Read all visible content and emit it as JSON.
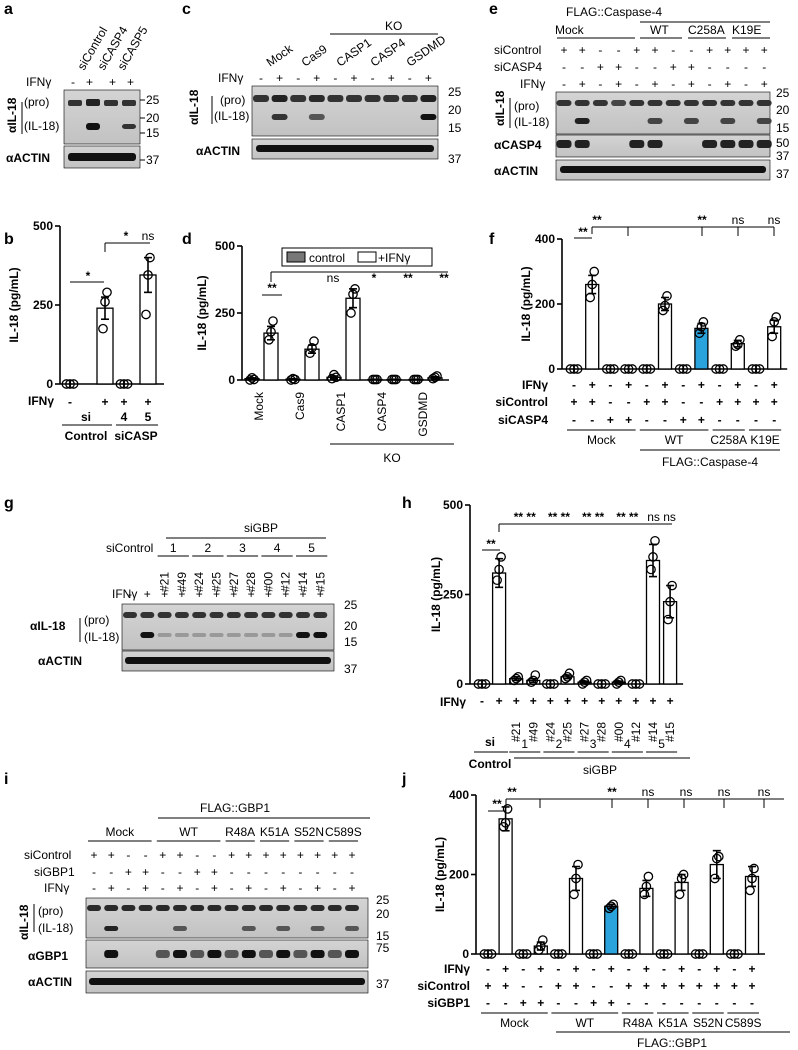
{
  "panels": {
    "a": "a",
    "b": "b",
    "c": "c",
    "d": "d",
    "e": "e",
    "f": "f",
    "g": "g",
    "h": "h",
    "i": "i",
    "j": "j"
  },
  "common": {
    "ifng": "IFNγ",
    "plus": "+",
    "minus": "-",
    "il18_ab": "αIL-18",
    "actin_ab": "αACTIN",
    "pro": "(pro)",
    "mature": "(IL-18)",
    "ylabel": "IL-18 (pg/mL)",
    "sicontrol": "siControl",
    "si": "si",
    "control": "Control",
    "sig2": "**",
    "sig1": "*",
    "ns": "ns",
    "ko": "KO",
    "mock": "Mock"
  },
  "panel_a": {
    "columns": [
      "siControl",
      "siCASP4",
      "siCASP5"
    ],
    "ifng_signs": [
      "-",
      "+",
      "+",
      "+"
    ],
    "mw_il18": [
      "25",
      "20",
      "15"
    ],
    "mw_actin": [
      "37"
    ]
  },
  "panel_b": {
    "xticks": [
      "",
      "",
      "4",
      "5"
    ],
    "ifng_signs": [
      "-",
      "+",
      "+",
      "+"
    ],
    "group_label": "siCASP",
    "sig": [
      "*",
      "*",
      "ns"
    ]
  },
  "panel_c": {
    "columns": [
      "Mock",
      "Cas9",
      "CASP1",
      "CASP4",
      "GSDMD"
    ],
    "ifng_signs": [
      "-",
      "+",
      "-",
      "+",
      "-",
      "+",
      "-",
      "+",
      "-",
      "+"
    ],
    "mw": [
      "25",
      "20",
      "15",
      "37"
    ]
  },
  "panel_d": {
    "legend": [
      "control",
      "+IFNγ"
    ],
    "xticks": [
      "Mock",
      "Cas9",
      "CASP1",
      "CASP4",
      "GSDMD"
    ],
    "sig": [
      "**",
      "ns",
      "*",
      "**",
      "**"
    ]
  },
  "panel_e": {
    "header": "FLAG::Caspase-4",
    "groups": [
      "Mock",
      "WT",
      "C258A",
      "K19E"
    ],
    "rows": {
      "siControl": [
        "+",
        "+",
        "-",
        "-",
        "+",
        "+",
        "-",
        "-",
        "+",
        "+",
        "+",
        "+"
      ],
      "siCASP4": [
        "-",
        "-",
        "+",
        "+",
        "-",
        "-",
        "+",
        "+",
        "-",
        "-",
        "-",
        "-"
      ],
      "IFNγ": [
        "-",
        "+",
        "-",
        "+",
        "-",
        "+",
        "-",
        "+",
        "-",
        "+",
        "-",
        "+"
      ]
    },
    "casp4_ab": "αCASP4",
    "mw": [
      "25",
      "20",
      "15",
      "50",
      "37",
      "37"
    ]
  },
  "panel_f": {
    "rows": {
      "IFNγ": [
        "-",
        "+",
        "-",
        "+",
        "-",
        "+",
        "-",
        "+",
        "-",
        "+",
        "-",
        "+"
      ],
      "siControl": [
        "+",
        "+",
        "-",
        "-",
        "+",
        "+",
        "-",
        "-",
        "+",
        "+",
        "+",
        "+"
      ],
      "siCASP4": [
        "-",
        "-",
        "+",
        "+",
        "-",
        "-",
        "+",
        "+",
        "-",
        "-",
        "-",
        "-"
      ]
    },
    "groups": [
      "Mock",
      "WT",
      "C258A",
      "K19E"
    ],
    "header": "FLAG::Caspase-4",
    "sig": [
      "**",
      "**",
      "**",
      "ns",
      "ns"
    ]
  },
  "panel_g": {
    "header": "siGBP",
    "gbp_nums": [
      "1",
      "2",
      "3",
      "4",
      "5"
    ],
    "sirnas": [
      "#21",
      "#49",
      "#24",
      "#25",
      "#27",
      "#28",
      "#00",
      "#12",
      "#14",
      "#15"
    ],
    "ifng_signs": [
      "-",
      "+",
      "+",
      "+",
      "+",
      "+",
      "+",
      "+",
      "+",
      "+",
      "+",
      "+"
    ],
    "mw": [
      "25",
      "20",
      "15",
      "37"
    ]
  },
  "panel_h": {
    "ifng_signs": [
      "-",
      "+",
      "+",
      "+",
      "+",
      "+",
      "+",
      "+",
      "+",
      "+",
      "+",
      "+"
    ],
    "sirnas": [
      "#21",
      "#49",
      "#24",
      "#25",
      "#27",
      "#28",
      "#00",
      "#12",
      "#14",
      "#15"
    ],
    "gbp_nums": [
      "1",
      "2",
      "3",
      "4",
      "5"
    ],
    "group_label": "siGBP",
    "sig": [
      "**",
      "** **",
      "** **",
      "** **",
      "** **",
      "ns ns"
    ]
  },
  "panel_i": {
    "header": "FLAG::GBP1",
    "groups": [
      "Mock",
      "WT",
      "R48A",
      "K51A",
      "S52N",
      "C589S"
    ],
    "rows": {
      "siControl": [
        "+",
        "+",
        "-",
        "-",
        "+",
        "+",
        "-",
        "-",
        "+",
        "+",
        "+",
        "+",
        "+",
        "+",
        "+",
        "+"
      ],
      "siGBP1": [
        "-",
        "-",
        "+",
        "+",
        "-",
        "-",
        "+",
        "+",
        "-",
        "-",
        "-",
        "-",
        "-",
        "-",
        "-",
        "-"
      ],
      "IFNγ": [
        "-",
        "+",
        "-",
        "+",
        "-",
        "+",
        "-",
        "+",
        "-",
        "+",
        "-",
        "+",
        "-",
        "+",
        "-",
        "+"
      ]
    },
    "gbp1_ab": "αGBP1",
    "mw": [
      "25",
      "20",
      "15",
      "75",
      "37"
    ]
  },
  "panel_j": {
    "rows": {
      "IFNγ": [
        "-",
        "+",
        "-",
        "+",
        "-",
        "+",
        "-",
        "+",
        "-",
        "+",
        "-",
        "+",
        "-",
        "+",
        "-",
        "+"
      ],
      "siControl": [
        "+",
        "+",
        "-",
        "-",
        "+",
        "+",
        "-",
        "-",
        "+",
        "+",
        "+",
        "+",
        "+",
        "+",
        "+",
        "+"
      ],
      "siGBP1": [
        "-",
        "-",
        "+",
        "+",
        "-",
        "-",
        "+",
        "+",
        "-",
        "-",
        "-",
        "-",
        "-",
        "-",
        "-",
        "-"
      ]
    },
    "groups": [
      "Mock",
      "WT",
      "R48A",
      "K51A",
      "S52N",
      "C589S"
    ],
    "header": "FLAG::GBP1",
    "sig": [
      "**",
      "**",
      "**",
      "ns",
      "ns",
      "ns",
      "ns"
    ]
  },
  "chart_data": [
    {
      "panel": "b",
      "type": "bar",
      "ylabel": "IL-18 (pg/mL)",
      "ylim": [
        0,
        500
      ],
      "yticks": [
        0,
        250,
        500
      ],
      "categories": [
        "siControl -IFNγ",
        "siControl +IFNγ",
        "siCASP4 +IFNγ",
        "siCASP5 +IFNγ"
      ],
      "values": [
        0,
        240,
        0,
        345
      ],
      "errors": [
        0,
        35,
        0,
        55
      ],
      "points": [
        [
          0,
          0,
          0
        ],
        [
          175,
          260,
          290
        ],
        [
          0,
          0,
          0
        ],
        [
          220,
          345,
          400
        ]
      ]
    },
    {
      "panel": "d",
      "type": "bar",
      "ylabel": "IL-18 (pg/mL)",
      "ylim": [
        0,
        500
      ],
      "yticks": [
        0,
        250,
        500
      ],
      "categories": [
        "Mock -",
        "Mock +",
        "Cas9 -",
        "Cas9 +",
        "CASP1 -",
        "CASP1 +",
        "CASP4 -",
        "CASP4 +",
        "GSDMD -",
        "GSDMD +"
      ],
      "values": [
        5,
        175,
        3,
        115,
        10,
        305,
        2,
        2,
        2,
        8
      ],
      "errors": [
        3,
        25,
        2,
        15,
        5,
        35,
        1,
        1,
        1,
        4
      ],
      "points": [
        [
          0,
          8,
          2
        ],
        [
          150,
          180,
          220
        ],
        [
          0,
          5,
          2
        ],
        [
          100,
          120,
          145
        ],
        [
          5,
          20,
          10
        ],
        [
          250,
          320,
          340
        ],
        [
          2,
          2,
          2
        ],
        [
          2,
          2,
          2
        ],
        [
          2,
          2,
          2
        ],
        [
          5,
          10,
          15
        ]
      ]
    },
    {
      "panel": "f",
      "type": "bar",
      "ylabel": "IL-18 (pg/mL)",
      "ylim": [
        0,
        400
      ],
      "yticks": [
        0,
        200,
        400
      ],
      "categories": [
        "1",
        "2",
        "3",
        "4",
        "5",
        "6",
        "7",
        "8",
        "9",
        "10",
        "11",
        "12"
      ],
      "values": [
        0,
        260,
        0,
        0,
        0,
        200,
        0,
        125,
        0,
        78,
        0,
        130
      ],
      "errors": [
        0,
        28,
        0,
        0,
        0,
        20,
        0,
        15,
        0,
        10,
        0,
        20
      ],
      "highlight": [
        7
      ],
      "points": [
        [
          0,
          0,
          0
        ],
        [
          220,
          260,
          300
        ],
        [
          0,
          0,
          0
        ],
        [
          0,
          0,
          0
        ],
        [
          0,
          0,
          0
        ],
        [
          180,
          195,
          225
        ],
        [
          0,
          0,
          0
        ],
        [
          110,
          130,
          145
        ],
        [
          0,
          0,
          0
        ],
        [
          70,
          75,
          90
        ],
        [
          0,
          0,
          0
        ],
        [
          100,
          145,
          160
        ]
      ]
    },
    {
      "panel": "h",
      "type": "bar",
      "ylabel": "IL-18 (pg/mL)",
      "ylim": [
        0,
        500
      ],
      "yticks": [
        0,
        250,
        500
      ],
      "categories": [
        "- ",
        "+",
        "#21",
        "#49",
        "#24",
        "#25",
        "#27",
        "#28",
        "#00",
        "#12",
        "#14",
        "#15"
      ],
      "values": [
        0,
        310,
        15,
        10,
        0,
        20,
        5,
        0,
        5,
        0,
        345,
        230
      ],
      "errors": [
        0,
        40,
        5,
        5,
        0,
        5,
        3,
        0,
        3,
        0,
        45,
        45
      ],
      "points": [
        [
          0,
          0,
          0
        ],
        [
          290,
          320,
          355
        ],
        [
          10,
          15,
          20
        ],
        [
          5,
          10,
          25
        ],
        [
          0,
          0,
          0
        ],
        [
          15,
          20,
          30
        ],
        [
          0,
          5,
          10
        ],
        [
          0,
          0,
          0
        ],
        [
          0,
          5,
          10
        ],
        [
          0,
          0,
          0
        ],
        [
          320,
          355,
          400
        ],
        [
          180,
          230,
          275
        ]
      ]
    },
    {
      "panel": "j",
      "type": "bar",
      "ylabel": "IL-18 (pg/mL)",
      "ylim": [
        0,
        400
      ],
      "yticks": [
        0,
        200,
        400
      ],
      "categories": [
        "1",
        "2",
        "3",
        "4",
        "5",
        "6",
        "7",
        "8",
        "9",
        "10",
        "11",
        "12",
        "13",
        "14",
        "15",
        "16"
      ],
      "values": [
        0,
        340,
        0,
        20,
        0,
        190,
        0,
        120,
        0,
        165,
        0,
        180,
        0,
        225,
        0,
        195
      ],
      "errors": [
        0,
        30,
        0,
        10,
        0,
        30,
        0,
        5,
        0,
        20,
        0,
        20,
        0,
        35,
        0,
        25
      ],
      "highlight": [
        7
      ],
      "points": [
        [
          0,
          0,
          0
        ],
        [
          320,
          330,
          365
        ],
        [
          0,
          0,
          0
        ],
        [
          10,
          20,
          35
        ],
        [
          0,
          0,
          0
        ],
        [
          150,
          190,
          225
        ],
        [
          0,
          0,
          0
        ],
        [
          115,
          120,
          125
        ],
        [
          0,
          0,
          0
        ],
        [
          150,
          170,
          195
        ],
        [
          0,
          0,
          0
        ],
        [
          150,
          190,
          200
        ],
        [
          0,
          0,
          0
        ],
        [
          190,
          240,
          245
        ],
        [
          0,
          0,
          0
        ],
        [
          160,
          190,
          215
        ]
      ]
    }
  ]
}
